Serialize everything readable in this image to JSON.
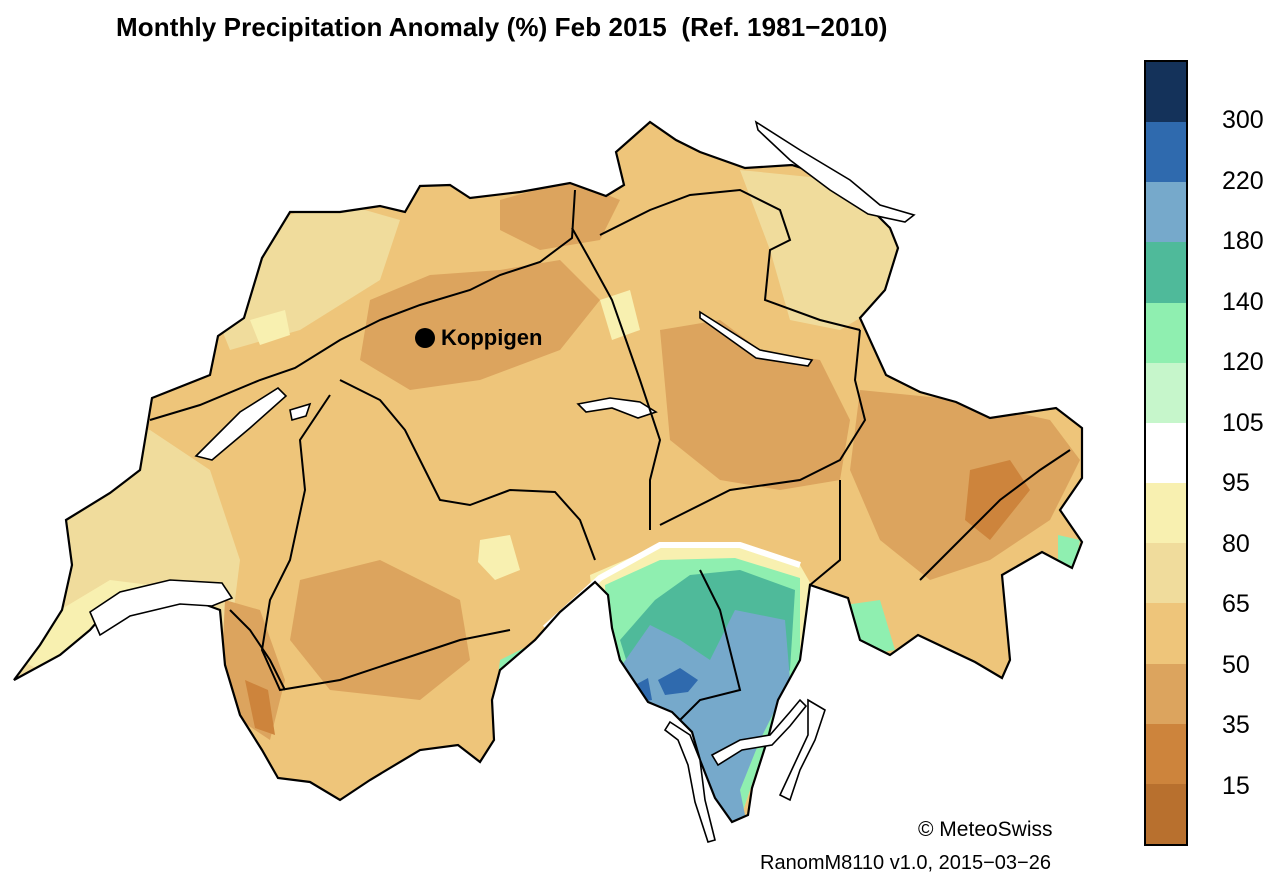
{
  "title": "Monthly Precipitation Anomaly (%) Feb 2015  (Ref. 1981−2010)",
  "station": {
    "name": "Koppigen"
  },
  "credit": "© MeteoSwiss",
  "version": "RanomM8110 v1.0, 2015−03−26",
  "legend": {
    "ticks": [
      "300",
      "220",
      "180",
      "140",
      "120",
      "105",
      "95",
      "80",
      "65",
      "50",
      "35",
      "15"
    ],
    "colors": [
      "#14325a",
      "#2f6aae",
      "#76a9cb",
      "#4fba9a",
      "#8fefb0",
      "#c6f6cb",
      "#ffffff",
      "#f8f0b0",
      "#f0dc9c",
      "#eec57a",
      "#dca45e",
      "#cd843c",
      "#b8702e"
    ]
  },
  "palette": {
    "base": "#eec57a",
    "dry": "#dca45e",
    "very_dry": "#cd843c",
    "wetter": "#f0dc9c",
    "near_normal": "#f8f0b0",
    "green": "#8fefb0",
    "teal": "#4fba9a",
    "light_blue": "#76a9cb",
    "blue": "#2f6aae",
    "border": "#000000",
    "lakes": "#ffffff"
  }
}
